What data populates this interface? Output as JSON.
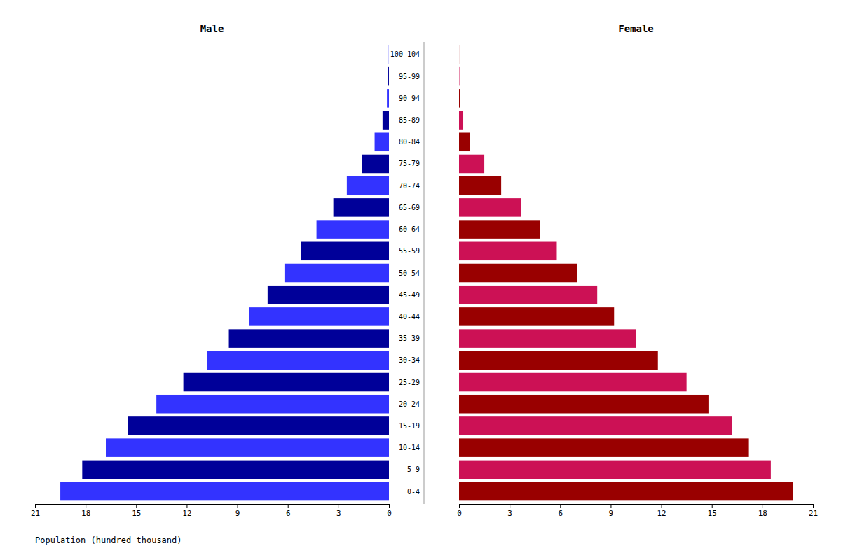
{
  "chart_data": {
    "type": "bar",
    "orientation": "horizontal",
    "categories": [
      "0-4",
      "5-9",
      "10-14",
      "15-19",
      "20-24",
      "25-29",
      "30-34",
      "35-39",
      "40-44",
      "45-49",
      "50-54",
      "55-59",
      "60-64",
      "65-69",
      "70-74",
      "75-79",
      "80-84",
      "85-89",
      "90-94",
      "95-99",
      "100-104"
    ],
    "series": [
      {
        "name": "Male",
        "values": [
          19.5,
          18.2,
          16.8,
          15.5,
          13.8,
          12.2,
          10.8,
          9.5,
          8.3,
          7.2,
          6.2,
          5.2,
          4.3,
          3.3,
          2.5,
          1.6,
          0.85,
          0.38,
          0.12,
          0.04,
          0.01
        ],
        "colors": [
          "#3333FF",
          "#000099",
          "#3333FF",
          "#000099",
          "#3333FF",
          "#000099",
          "#3333FF",
          "#000099",
          "#3333FF",
          "#000099",
          "#3333FF",
          "#000099",
          "#3333FF",
          "#000099",
          "#3333FF",
          "#000099",
          "#3333FF",
          "#000099",
          "#3333FF",
          "#000099",
          "#3333FF"
        ]
      },
      {
        "name": "Female",
        "values": [
          19.8,
          18.5,
          17.2,
          16.2,
          14.8,
          13.5,
          11.8,
          10.5,
          9.2,
          8.2,
          7.0,
          5.8,
          4.8,
          3.7,
          2.5,
          1.5,
          0.65,
          0.25,
          0.08,
          0.02,
          0.005
        ],
        "colors": [
          "#990000",
          "#CC1155",
          "#990000",
          "#CC1155",
          "#990000",
          "#CC1155",
          "#990000",
          "#CC1155",
          "#990000",
          "#CC1155",
          "#990000",
          "#CC1155",
          "#990000",
          "#CC1155",
          "#990000",
          "#CC1155",
          "#990000",
          "#CC1155",
          "#990000",
          "#CC1155",
          "#990000"
        ]
      }
    ],
    "xlim": [
      0,
      21
    ],
    "xticks": [
      0,
      3,
      6,
      9,
      12,
      15,
      18,
      21
    ],
    "xlabel": "Population (hundred thousand)",
    "grid": false
  }
}
